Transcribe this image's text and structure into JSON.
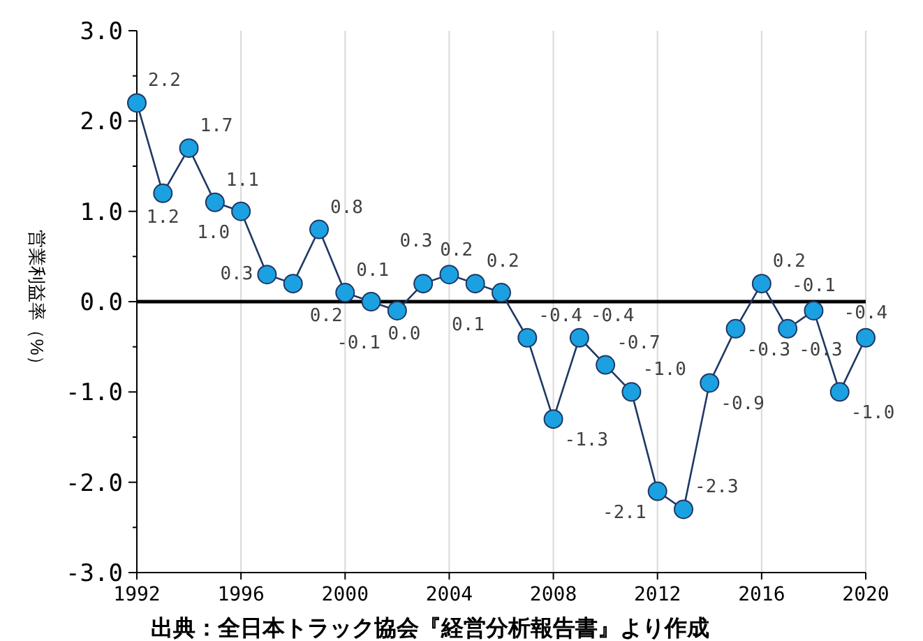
{
  "chart_data": {
    "type": "line",
    "ylabel": "営業利益率（%）",
    "annotations": [
      "出典：全日本トラック協会『経営分析報告書』より作成"
    ],
    "x": [
      1992,
      1993,
      1994,
      1995,
      1996,
      1997,
      1998,
      1999,
      2000,
      2001,
      2002,
      2003,
      2004,
      2005,
      2006,
      2007,
      2008,
      2009,
      2010,
      2011,
      2012,
      2013,
      2014,
      2015,
      2016,
      2017,
      2018,
      2019,
      2020
    ],
    "series": [
      {
        "color": "#1ba1e2",
        "values": [
          2.2,
          1.2,
          1.7,
          1.1,
          1.0,
          0.3,
          0.2,
          0.8,
          0.1,
          0.0,
          -0.1,
          0.2,
          0.3,
          0.2,
          0.1,
          -0.4,
          -1.3,
          -0.4,
          -0.7,
          -1.0,
          -2.1,
          -2.3,
          -0.9,
          -0.3,
          0.2,
          -0.3,
          -0.1,
          -1.0,
          -0.4
        ],
        "value_labels": [
          "2.2",
          "1.2",
          "1.7",
          "1.1",
          "1.0",
          "0.3",
          "0.2",
          "0.8",
          "0.1",
          "0.0",
          "-0.1",
          "0.2",
          "0.3",
          "0.2",
          "0.1",
          "-0.4",
          "-1.3",
          "-0.4",
          "-0.7",
          "-1.0",
          "-2.1",
          "-2.3",
          "-0.9",
          "-0.3",
          "0.2",
          "-0.3",
          "-0.1",
          "-1.0",
          "-0.4"
        ]
      }
    ],
    "xlim": [
      1992,
      2020
    ],
    "xticks": [
      1992,
      1996,
      2000,
      2004,
      2008,
      2012,
      2016,
      2020
    ],
    "ylim": [
      -3,
      3
    ],
    "yticks": [
      {
        "value": -3,
        "label": "-3.0"
      },
      {
        "value": -2.5,
        "label": null
      },
      {
        "value": -2,
        "label": "-2.0"
      },
      {
        "value": -1.5,
        "label": null
      },
      {
        "value": -1,
        "label": "-1.0"
      },
      {
        "value": -0.5,
        "label": null
      },
      {
        "value": 0,
        "label": "0.0"
      },
      {
        "value": 0.5,
        "label": null
      },
      {
        "value": 1,
        "label": "1.0"
      },
      {
        "value": 1.5,
        "label": null
      },
      {
        "value": 2,
        "label": "2.0"
      },
      {
        "value": 2.5,
        "label": null
      },
      {
        "value": 3,
        "label": "3.0"
      }
    ],
    "ref_lines": [
      {
        "axis": "y",
        "value": 0,
        "color": "#000000"
      }
    ],
    "grid": "x",
    "marker": "circle",
    "line_style": "solid"
  }
}
